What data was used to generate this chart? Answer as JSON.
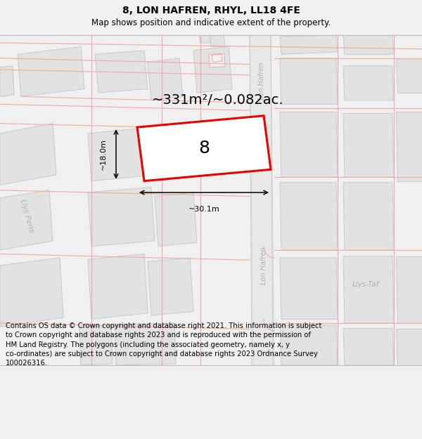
{
  "title": "8, LON HAFREN, RHYL, LL18 4FE",
  "subtitle": "Map shows position and indicative extent of the property.",
  "footer": "Contains OS data © Crown copyright and database right 2021. This information is subject\nto Crown copyright and database rights 2023 and is reproduced with the permission of\nHM Land Registry. The polygons (including the associated geometry, namely x, y\nco-ordinates) are subject to Crown copyright and database rights 2023 Ordnance Survey\n100026316.",
  "area_label": "~331m²/~0.082ac.",
  "width_label": "~30.1m",
  "height_label": "~18.0m",
  "plot_number": "8",
  "bg_color": "#f0f0f0",
  "map_bg": "#ffffff",
  "building_color": "#e2e2e2",
  "building_edge": "#c8c8c8",
  "road_color": "#e8e8e8",
  "highlight_color": "#ee0000",
  "road_label_color": "#b0b0b0",
  "pink_line_color": "#f0a8a8",
  "title_fontsize": 10,
  "subtitle_fontsize": 8.5,
  "footer_fontsize": 7.2,
  "area_fontsize": 14,
  "plot_num_fontsize": 18,
  "dim_label_fontsize": 8
}
